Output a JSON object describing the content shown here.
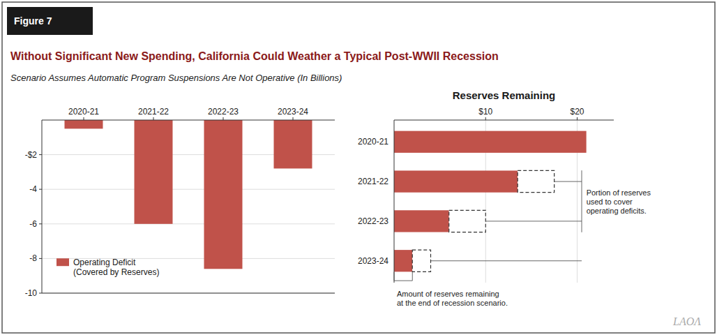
{
  "chart_data": [
    {
      "type": "bar",
      "title": "Without Significant New Spending, California Could Weather a Typical Post-WWII Recession",
      "subtitle": "Scenario Assumes Automatic Program Suspensions Are Not Operative (In Billions)",
      "annotations": [
        "Figure 7",
        "LAOΛ"
      ],
      "categories": [
        "2020-21",
        "2021-22",
        "2022-23",
        "2023-24"
      ],
      "series": [
        {
          "name": "Operating Deficit\n(Covered by Reserves)",
          "color": "#c0524a",
          "values": [
            -0.5,
            -6.0,
            -8.6,
            -2.8
          ]
        }
      ],
      "ylim": [
        -10,
        0
      ],
      "yticks": [
        {
          "value": -2,
          "label": "-$2"
        },
        -4,
        -6,
        -8,
        -10
      ],
      "grid": true,
      "legend": "lower left"
    },
    {
      "type": "bar",
      "title": "Reserves Remaining",
      "orientation": "horizontal",
      "stacked": true,
      "categories": [
        "2020-21",
        "2021-22",
        "2022-23",
        "2023-24"
      ],
      "series": [
        {
          "color": "#c0524a",
          "values": [
            21.0,
            13.5,
            6.0,
            2.0
          ]
        },
        {
          "color": "#ffffff",
          "line_style": "dashed",
          "values": [
            0.0,
            4.0,
            4.0,
            2.0
          ]
        }
      ],
      "xlim": [
        0,
        24
      ],
      "xticks": [
        {
          "value": 10,
          "label": "$10"
        },
        {
          "value": 20,
          "label": "$20"
        }
      ],
      "grid": true,
      "annotations": [
        "Portion of reserves\nused to cover\noperating deficits.",
        "Amount of reserves remaining\nat the end of recession scenario."
      ]
    }
  ]
}
